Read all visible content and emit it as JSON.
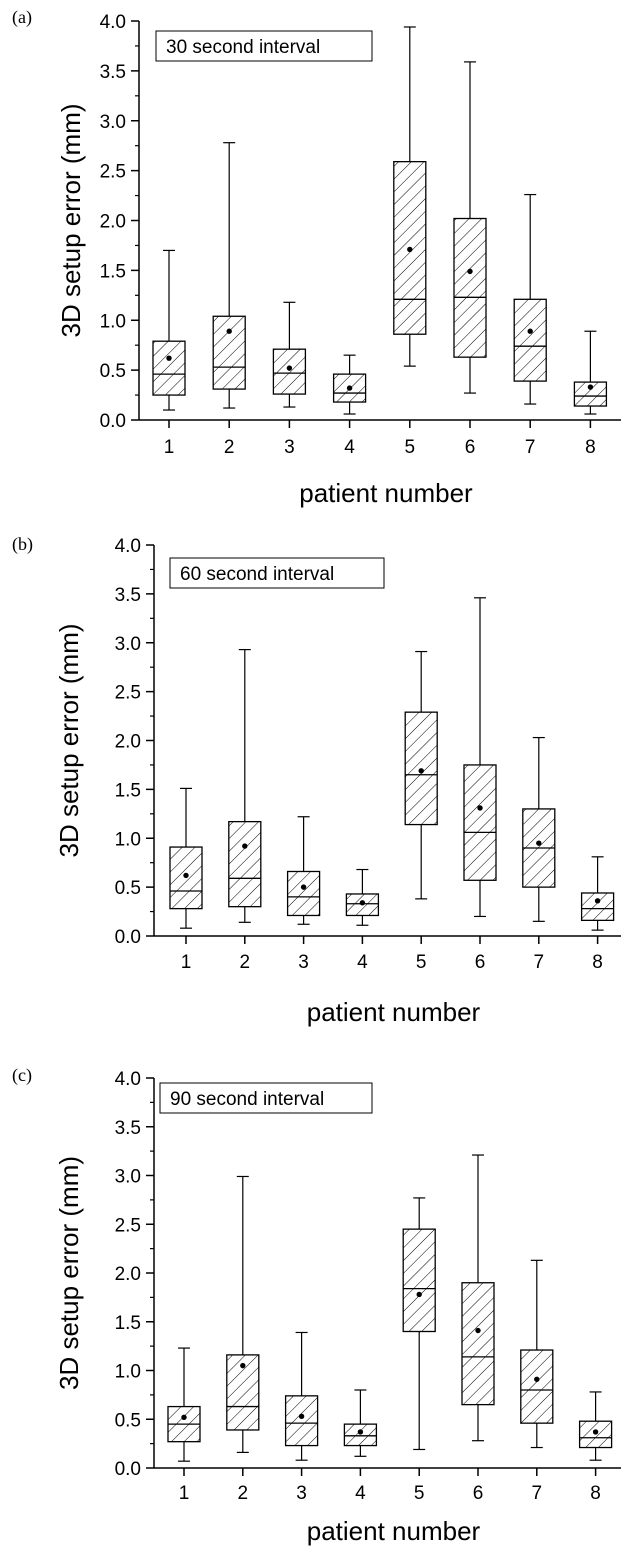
{
  "chart_data": [
    {
      "type": "box",
      "panel_label": "(a)",
      "annotation": "30 second interval",
      "xlabel": "patient number",
      "ylabel": "3D setup error (mm)",
      "ylim": [
        0,
        4.0
      ],
      "yticks": [
        "0.0",
        "0.5",
        "1.0",
        "1.5",
        "2.0",
        "2.5",
        "3.0",
        "3.5",
        "4.0"
      ],
      "categories": [
        "1",
        "2",
        "3",
        "4",
        "5",
        "6",
        "7",
        "8"
      ],
      "boxes": [
        {
          "min": 0.1,
          "q1": 0.25,
          "median": 0.46,
          "q3": 0.79,
          "max": 1.7,
          "mean": 0.62
        },
        {
          "min": 0.12,
          "q1": 0.31,
          "median": 0.53,
          "q3": 1.04,
          "max": 2.78,
          "mean": 0.89
        },
        {
          "min": 0.13,
          "q1": 0.26,
          "median": 0.47,
          "q3": 0.71,
          "max": 1.18,
          "mean": 0.52
        },
        {
          "min": 0.06,
          "q1": 0.18,
          "median": 0.27,
          "q3": 0.46,
          "max": 0.65,
          "mean": 0.32
        },
        {
          "min": 0.54,
          "q1": 0.86,
          "median": 1.21,
          "q3": 2.59,
          "max": 3.94,
          "mean": 1.71
        },
        {
          "min": 0.27,
          "q1": 0.63,
          "median": 1.23,
          "q3": 2.02,
          "max": 3.59,
          "mean": 1.49
        },
        {
          "min": 0.16,
          "q1": 0.39,
          "median": 0.74,
          "q3": 1.21,
          "max": 2.26,
          "mean": 0.89
        },
        {
          "min": 0.06,
          "q1": 0.14,
          "median": 0.24,
          "q3": 0.38,
          "max": 0.89,
          "mean": 0.33
        }
      ]
    },
    {
      "type": "box",
      "panel_label": "(b)",
      "annotation": "60 second interval",
      "xlabel": "patient number",
      "ylabel": "3D setup error (mm)",
      "ylim": [
        0,
        4.0
      ],
      "yticks": [
        "0.0",
        "0.5",
        "1.0",
        "1.5",
        "2.0",
        "2.5",
        "3.0",
        "3.5",
        "4.0"
      ],
      "categories": [
        "1",
        "2",
        "3",
        "4",
        "5",
        "6",
        "7",
        "8"
      ],
      "boxes": [
        {
          "min": 0.08,
          "q1": 0.28,
          "median": 0.46,
          "q3": 0.91,
          "max": 1.51,
          "mean": 0.62
        },
        {
          "min": 0.14,
          "q1": 0.3,
          "median": 0.59,
          "q3": 1.17,
          "max": 2.93,
          "mean": 0.92
        },
        {
          "min": 0.12,
          "q1": 0.21,
          "median": 0.4,
          "q3": 0.66,
          "max": 1.22,
          "mean": 0.5
        },
        {
          "min": 0.11,
          "q1": 0.21,
          "median": 0.33,
          "q3": 0.43,
          "max": 0.68,
          "mean": 0.34
        },
        {
          "min": 0.38,
          "q1": 1.14,
          "median": 1.65,
          "q3": 2.29,
          "max": 2.91,
          "mean": 1.69
        },
        {
          "min": 0.2,
          "q1": 0.57,
          "median": 1.06,
          "q3": 1.75,
          "max": 3.46,
          "mean": 1.31
        },
        {
          "min": 0.15,
          "q1": 0.5,
          "median": 0.9,
          "q3": 1.3,
          "max": 2.03,
          "mean": 0.95
        },
        {
          "min": 0.06,
          "q1": 0.16,
          "median": 0.28,
          "q3": 0.44,
          "max": 0.81,
          "mean": 0.36
        }
      ]
    },
    {
      "type": "box",
      "panel_label": "(c)",
      "annotation": "90 second interval",
      "xlabel": "patient number",
      "ylabel": "3D setup error (mm)",
      "ylim": [
        0,
        4.0
      ],
      "yticks": [
        "0.0",
        "0.5",
        "1.0",
        "1.5",
        "2.0",
        "2.5",
        "3.0",
        "3.5",
        "4.0"
      ],
      "categories": [
        "1",
        "2",
        "3",
        "4",
        "5",
        "6",
        "7",
        "8"
      ],
      "boxes": [
        {
          "min": 0.07,
          "q1": 0.27,
          "median": 0.45,
          "q3": 0.63,
          "max": 1.23,
          "mean": 0.52
        },
        {
          "min": 0.16,
          "q1": 0.39,
          "median": 0.63,
          "q3": 1.16,
          "max": 2.99,
          "mean": 1.05
        },
        {
          "min": 0.08,
          "q1": 0.23,
          "median": 0.46,
          "q3": 0.74,
          "max": 1.39,
          "mean": 0.53
        },
        {
          "min": 0.12,
          "q1": 0.23,
          "median": 0.33,
          "q3": 0.45,
          "max": 0.8,
          "mean": 0.37
        },
        {
          "min": 0.19,
          "q1": 1.4,
          "median": 1.84,
          "q3": 2.45,
          "max": 2.77,
          "mean": 1.78
        },
        {
          "min": 0.28,
          "q1": 0.65,
          "median": 1.14,
          "q3": 1.9,
          "max": 3.21,
          "mean": 1.41
        },
        {
          "min": 0.21,
          "q1": 0.46,
          "median": 0.8,
          "q3": 1.21,
          "max": 2.13,
          "mean": 0.91
        },
        {
          "min": 0.08,
          "q1": 0.21,
          "median": 0.31,
          "q3": 0.48,
          "max": 0.78,
          "mean": 0.37
        }
      ]
    }
  ]
}
